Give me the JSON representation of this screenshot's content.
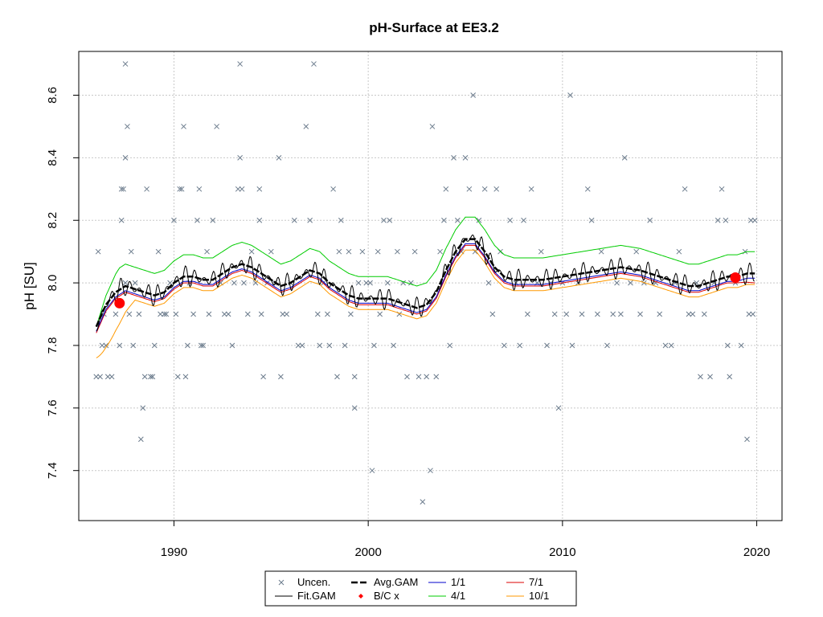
{
  "chart_data": {
    "type": "scatter",
    "title": "pH-Surface at EE3.2",
    "xlabel": "",
    "ylabel": "pH [SU]",
    "xlim": [
      1985.1,
      2021.3
    ],
    "ylim": [
      7.24,
      8.74
    ],
    "x_ticks": [
      "1990",
      "2000",
      "2010",
      "2020"
    ],
    "y_ticks": [
      "7.4",
      "7.6",
      "7.8",
      "8.0",
      "8.2",
      "8.4",
      "8.6"
    ],
    "grid": true,
    "legend_position": "bottom",
    "colors": {
      "points": "#6b7b8c",
      "fit": "#000000",
      "avg": "#000000",
      "bc": "#ff0000",
      "s1_1": "#0000cc",
      "s4_1": "#00cc00",
      "s7_1": "#dd0000",
      "s10_1": "#ff9900"
    },
    "legend": [
      {
        "key": "points",
        "label": "Uncen."
      },
      {
        "key": "avg",
        "label": "Avg.GAM"
      },
      {
        "key": "s1_1",
        "label": "1/1"
      },
      {
        "key": "s7_1",
        "label": "7/1"
      },
      {
        "key": "fit",
        "label": "Fit.GAM"
      },
      {
        "key": "bc",
        "label": "B/C x"
      },
      {
        "key": "s4_1",
        "label": "4/1"
      },
      {
        "key": "s10_1",
        "label": "10/1"
      }
    ],
    "points": [
      [
        1986.0,
        7.7
      ],
      [
        1986.2,
        7.7
      ],
      [
        1986.1,
        8.1
      ],
      [
        1986.3,
        7.8
      ],
      [
        1986.5,
        7.8
      ],
      [
        1986.6,
        7.7
      ],
      [
        1986.8,
        7.7
      ],
      [
        1986.4,
        7.9
      ],
      [
        1987.0,
        7.9
      ],
      [
        1987.2,
        7.8
      ],
      [
        1987.3,
        8.3
      ],
      [
        1987.4,
        8.3
      ],
      [
        1987.5,
        8.4
      ],
      [
        1987.5,
        8.7
      ],
      [
        1987.6,
        8.5
      ],
      [
        1987.3,
        8.2
      ],
      [
        1987.5,
        8.0
      ],
      [
        1987.7,
        7.9
      ],
      [
        1987.9,
        7.8
      ],
      [
        1987.8,
        8.1
      ],
      [
        1988.0,
        8.0
      ],
      [
        1988.2,
        7.9
      ],
      [
        1988.3,
        7.5
      ],
      [
        1988.4,
        7.6
      ],
      [
        1988.5,
        7.7
      ],
      [
        1988.6,
        8.3
      ],
      [
        1988.8,
        7.7
      ],
      [
        1988.9,
        7.7
      ],
      [
        1989.0,
        7.8
      ],
      [
        1989.2,
        8.1
      ],
      [
        1989.3,
        7.9
      ],
      [
        1989.5,
        7.9
      ],
      [
        1989.6,
        7.9
      ],
      [
        1989.8,
        8.0
      ],
      [
        1990.0,
        8.2
      ],
      [
        1990.1,
        7.9
      ],
      [
        1990.2,
        7.7
      ],
      [
        1990.3,
        8.3
      ],
      [
        1990.4,
        8.3
      ],
      [
        1990.5,
        8.5
      ],
      [
        1990.6,
        7.7
      ],
      [
        1990.7,
        7.8
      ],
      [
        1990.8,
        8.0
      ],
      [
        1991.0,
        7.9
      ],
      [
        1991.2,
        8.2
      ],
      [
        1991.3,
        8.3
      ],
      [
        1991.4,
        7.8
      ],
      [
        1991.5,
        7.8
      ],
      [
        1991.7,
        8.1
      ],
      [
        1991.8,
        7.9
      ],
      [
        1992.0,
        8.2
      ],
      [
        1992.2,
        8.5
      ],
      [
        1992.4,
        8.0
      ],
      [
        1992.6,
        7.9
      ],
      [
        1992.8,
        7.9
      ],
      [
        1993.0,
        7.8
      ],
      [
        1993.1,
        8.0
      ],
      [
        1993.3,
        8.3
      ],
      [
        1993.4,
        8.4
      ],
      [
        1993.5,
        8.3
      ],
      [
        1993.4,
        8.7
      ],
      [
        1993.6,
        8.0
      ],
      [
        1993.8,
        7.9
      ],
      [
        1994.0,
        8.1
      ],
      [
        1994.2,
        8.0
      ],
      [
        1994.4,
        8.2
      ],
      [
        1994.5,
        7.9
      ],
      [
        1994.4,
        8.3
      ],
      [
        1994.6,
        7.7
      ],
      [
        1994.8,
        8.0
      ],
      [
        1995.0,
        8.1
      ],
      [
        1995.2,
        8.0
      ],
      [
        1995.4,
        8.4
      ],
      [
        1995.5,
        7.7
      ],
      [
        1995.6,
        7.9
      ],
      [
        1995.8,
        7.9
      ],
      [
        1996.0,
        8.0
      ],
      [
        1996.2,
        8.2
      ],
      [
        1996.4,
        7.8
      ],
      [
        1996.6,
        7.8
      ],
      [
        1996.8,
        8.5
      ],
      [
        1997.0,
        8.2
      ],
      [
        1997.2,
        8.7
      ],
      [
        1997.4,
        7.9
      ],
      [
        1997.5,
        7.8
      ],
      [
        1997.7,
        8.0
      ],
      [
        1997.9,
        7.9
      ],
      [
        1998.0,
        7.8
      ],
      [
        1998.2,
        8.3
      ],
      [
        1998.4,
        7.7
      ],
      [
        1998.5,
        8.1
      ],
      [
        1998.6,
        8.2
      ],
      [
        1998.8,
        7.8
      ],
      [
        1999.0,
        8.1
      ],
      [
        1999.1,
        7.9
      ],
      [
        1999.3,
        7.6
      ],
      [
        1999.3,
        7.7
      ],
      [
        1999.5,
        8.0
      ],
      [
        1999.7,
        8.1
      ],
      [
        1999.9,
        8.0
      ],
      [
        2000.1,
        8.0
      ],
      [
        2000.2,
        7.4
      ],
      [
        2000.3,
        7.8
      ],
      [
        2000.5,
        8.1
      ],
      [
        2000.6,
        7.9
      ],
      [
        2000.8,
        8.2
      ],
      [
        2001.0,
        8.0
      ],
      [
        2001.1,
        8.2
      ],
      [
        2001.3,
        7.8
      ],
      [
        2001.5,
        8.1
      ],
      [
        2001.6,
        7.9
      ],
      [
        2001.8,
        8.0
      ],
      [
        2002.0,
        7.7
      ],
      [
        2002.2,
        8.0
      ],
      [
        2002.4,
        8.1
      ],
      [
        2002.6,
        7.7
      ],
      [
        2002.8,
        7.3
      ],
      [
        2003.0,
        7.7
      ],
      [
        2003.2,
        7.4
      ],
      [
        2003.3,
        8.5
      ],
      [
        2003.5,
        7.7
      ],
      [
        2003.7,
        8.1
      ],
      [
        2003.9,
        8.2
      ],
      [
        2004.0,
        8.3
      ],
      [
        2004.2,
        7.8
      ],
      [
        2004.4,
        8.4
      ],
      [
        2004.6,
        8.2
      ],
      [
        2004.8,
        8.1
      ],
      [
        2005.0,
        8.4
      ],
      [
        2005.2,
        8.3
      ],
      [
        2005.4,
        8.6
      ],
      [
        2005.5,
        8.1
      ],
      [
        2005.7,
        8.2
      ],
      [
        2006.0,
        8.3
      ],
      [
        2006.2,
        8.0
      ],
      [
        2006.4,
        7.9
      ],
      [
        2006.6,
        8.3
      ],
      [
        2006.8,
        8.1
      ],
      [
        2007.0,
        7.8
      ],
      [
        2007.3,
        8.2
      ],
      [
        2007.6,
        8.0
      ],
      [
        2007.8,
        7.8
      ],
      [
        2008.0,
        8.2
      ],
      [
        2008.2,
        7.9
      ],
      [
        2008.4,
        8.3
      ],
      [
        2008.7,
        8.0
      ],
      [
        2008.9,
        8.1
      ],
      [
        2009.2,
        7.8
      ],
      [
        2009.4,
        8.0
      ],
      [
        2009.6,
        7.9
      ],
      [
        2009.8,
        7.6
      ],
      [
        2010.0,
        8.0
      ],
      [
        2010.2,
        7.9
      ],
      [
        2010.4,
        8.6
      ],
      [
        2010.5,
        7.8
      ],
      [
        2010.8,
        8.0
      ],
      [
        2011.0,
        7.9
      ],
      [
        2011.3,
        8.3
      ],
      [
        2011.5,
        8.2
      ],
      [
        2011.8,
        7.9
      ],
      [
        2012.0,
        8.1
      ],
      [
        2012.3,
        7.8
      ],
      [
        2012.6,
        7.9
      ],
      [
        2012.8,
        8.0
      ],
      [
        2013.0,
        7.9
      ],
      [
        2013.2,
        8.4
      ],
      [
        2013.5,
        8.0
      ],
      [
        2013.8,
        8.1
      ],
      [
        2014.0,
        7.9
      ],
      [
        2014.2,
        8.0
      ],
      [
        2014.5,
        8.2
      ],
      [
        2014.8,
        8.0
      ],
      [
        2015.0,
        7.9
      ],
      [
        2015.3,
        7.8
      ],
      [
        2015.6,
        7.8
      ],
      [
        2015.8,
        8.0
      ],
      [
        2016.0,
        8.1
      ],
      [
        2016.3,
        8.3
      ],
      [
        2016.5,
        7.9
      ],
      [
        2016.7,
        7.9
      ],
      [
        2016.9,
        8.0
      ],
      [
        2017.1,
        7.7
      ],
      [
        2017.3,
        7.9
      ],
      [
        2017.6,
        7.7
      ],
      [
        2017.8,
        8.0
      ],
      [
        2018.0,
        8.2
      ],
      [
        2018.2,
        8.3
      ],
      [
        2018.4,
        8.2
      ],
      [
        2018.6,
        7.7
      ],
      [
        2018.5,
        7.8
      ],
      [
        2018.9,
        8.0
      ],
      [
        2019.2,
        7.8
      ],
      [
        2019.4,
        8.1
      ],
      [
        2019.5,
        7.5
      ],
      [
        2019.6,
        7.9
      ],
      [
        2019.7,
        8.2
      ],
      [
        2019.8,
        7.9
      ],
      [
        2019.9,
        8.2
      ]
    ],
    "avg_gam": {
      "x": [
        1986.0,
        1986.5,
        1987.0,
        1987.5,
        1988.0,
        1988.5,
        1989.0,
        1989.5,
        1990.0,
        1990.5,
        1991.0,
        1991.5,
        1992.0,
        1992.5,
        1993.0,
        1993.5,
        1994.0,
        1994.5,
        1995.0,
        1995.5,
        1996.0,
        1996.5,
        1997.0,
        1997.5,
        1998.0,
        1998.5,
        1999.0,
        1999.5,
        2000.0,
        2000.5,
        2001.0,
        2001.5,
        2002.0,
        2002.5,
        2003.0,
        2003.5,
        2004.0,
        2004.5,
        2005.0,
        2005.5,
        2006.0,
        2006.5,
        2007.0,
        2007.5,
        2008.0,
        2009.0,
        2010.0,
        2011.0,
        2012.0,
        2013.0,
        2014.0,
        2015.0,
        2016.0,
        2016.5,
        2017.0,
        2017.5,
        2018.0,
        2018.5,
        2019.0,
        2019.5,
        2019.9
      ],
      "y": [
        7.86,
        7.93,
        7.97,
        7.99,
        7.98,
        7.97,
        7.96,
        7.97,
        8.0,
        8.02,
        8.02,
        8.01,
        8.01,
        8.03,
        8.05,
        8.06,
        8.05,
        8.03,
        8.01,
        7.99,
        8.0,
        8.02,
        8.04,
        8.03,
        8.0,
        7.98,
        7.96,
        7.95,
        7.95,
        7.95,
        7.95,
        7.94,
        7.93,
        7.92,
        7.93,
        7.97,
        8.04,
        8.1,
        8.14,
        8.14,
        8.1,
        8.05,
        8.02,
        8.01,
        8.01,
        8.01,
        8.02,
        8.03,
        8.04,
        8.05,
        8.04,
        8.02,
        8.0,
        7.99,
        7.99,
        8.0,
        8.01,
        8.02,
        8.02,
        8.03,
        8.03
      ]
    },
    "bc_points": [
      [
        1987.2,
        7.935
      ],
      [
        2018.9,
        8.017
      ]
    ],
    "fit_gam_amplitude": 0.035,
    "fit_gam_offset": 0.02,
    "scenario_offsets": {
      "s1_1": -0.015,
      "s4_1": 0.07,
      "s7_1": -0.02,
      "s10_1": -0.035
    },
    "s10_1_start": 7.76,
    "s7_1_end": 8.0
  }
}
